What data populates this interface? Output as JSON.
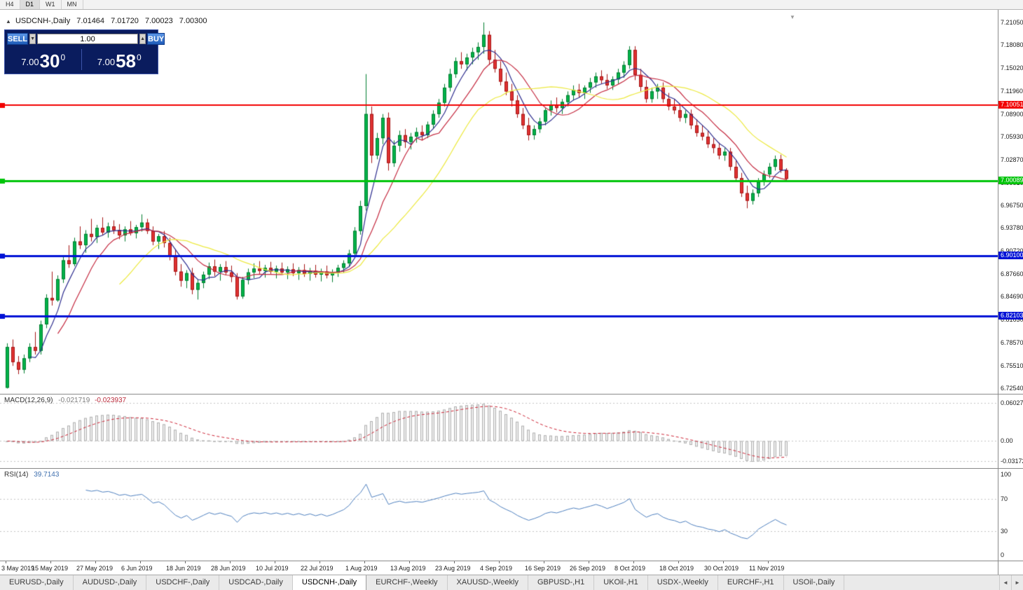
{
  "toolbar": {
    "timeframes": [
      {
        "label": "H4",
        "active": false
      },
      {
        "label": "D1",
        "active": true
      },
      {
        "label": "W1",
        "active": false
      },
      {
        "label": "MN",
        "active": false
      }
    ]
  },
  "chart_header": {
    "collapse_icon": "▲",
    "title": "USDCNH-,Daily",
    "open": "7.01464",
    "high": "7.01720",
    "low": "7.00023",
    "close": "7.00300"
  },
  "one_click": {
    "sell_label": "SELL",
    "buy_label": "BUY",
    "volume": "1.00",
    "spin_down_icon": "▼",
    "spin_up_icon": "▲",
    "sell_price": {
      "prefix": "7.00",
      "pips": "30",
      "point": "0"
    },
    "buy_price": {
      "prefix": "7.00",
      "pips": "58",
      "point": "0"
    }
  },
  "icons": {
    "scroll_end": "▼"
  },
  "price_axis": {
    "labels": [
      "7.21050",
      "7.18080",
      "7.15020",
      "7.11960",
      "7.08900",
      "7.05930",
      "7.02870",
      "6.99810",
      "6.96750",
      "6.93780",
      "6.90720",
      "6.87660",
      "6.84690",
      "6.81630",
      "6.78570",
      "6.75510",
      "6.72540"
    ]
  },
  "levels": [
    {
      "value": 7.10051,
      "label": "7.10051",
      "color": "#f20000",
      "width": 2
    },
    {
      "value": 7.00089,
      "label": "7.00089",
      "color": "#00c40a",
      "width": 3
    },
    {
      "value": 6.901,
      "label": "6.90100",
      "color": "#0012d6",
      "width": 3
    },
    {
      "value": 6.82103,
      "label": "6.82103",
      "color": "#0012d6",
      "width": 3
    }
  ],
  "chart_data": {
    "type": "candlestick",
    "symbol": "USDCNH-",
    "period": "Daily",
    "title": "USDCNH-,Daily",
    "ylim": [
      6.7254,
      7.2105
    ],
    "up_color": "#00b34a",
    "up_border": "#007d2f",
    "down_color": "#e03232",
    "down_border": "#a51515",
    "x_label_indices": [
      0,
      8,
      16,
      24,
      32,
      40,
      48,
      56,
      64,
      72,
      80,
      88,
      96,
      104,
      112,
      120,
      128,
      136
    ],
    "x_labels": [
      "3 May 2019",
      "15 May 2019",
      "27 May 2019",
      "6 Jun 2019",
      "18 Jun 2019",
      "28 Jun 2019",
      "10 Jul 2019",
      "22 Jul 2019",
      "1 Aug 2019",
      "13 Aug 2019",
      "23 Aug 2019",
      "4 Sep 2019",
      "16 Sep 2019",
      "26 Sep 2019",
      "8 Oct 2019",
      "18 Oct 2019",
      "30 Oct 2019",
      "11 Nov 2019"
    ],
    "ohlc": [
      [
        6.726,
        6.785,
        6.725,
        6.78
      ],
      [
        6.78,
        6.79,
        6.755,
        6.76
      ],
      [
        6.76,
        6.768,
        6.744,
        6.75
      ],
      [
        6.75,
        6.77,
        6.745,
        6.765
      ],
      [
        6.765,
        6.785,
        6.76,
        6.78
      ],
      [
        6.78,
        6.8,
        6.77,
        6.775
      ],
      [
        6.775,
        6.815,
        6.77,
        6.81
      ],
      [
        6.81,
        6.85,
        6.805,
        6.845
      ],
      [
        6.845,
        6.88,
        6.835,
        6.842
      ],
      [
        6.842,
        6.875,
        6.84,
        6.87
      ],
      [
        6.87,
        6.9,
        6.865,
        6.895
      ],
      [
        6.895,
        6.915,
        6.885,
        6.89
      ],
      [
        6.89,
        6.925,
        6.887,
        6.92
      ],
      [
        6.92,
        6.94,
        6.91,
        6.915
      ],
      [
        6.915,
        6.935,
        6.905,
        6.93
      ],
      [
        6.93,
        6.95,
        6.92,
        6.926
      ],
      [
        6.926,
        6.942,
        6.918,
        6.938
      ],
      [
        6.938,
        6.952,
        6.928,
        6.932
      ],
      [
        6.932,
        6.945,
        6.925,
        6.94
      ],
      [
        6.94,
        6.948,
        6.93,
        6.935
      ],
      [
        6.935,
        6.943,
        6.923,
        6.928
      ],
      [
        6.928,
        6.94,
        6.92,
        6.936
      ],
      [
        6.936,
        6.947,
        6.928,
        6.931
      ],
      [
        6.931,
        6.942,
        6.924,
        6.939
      ],
      [
        6.939,
        6.956,
        6.933,
        6.945
      ],
      [
        6.945,
        6.95,
        6.93,
        6.934
      ],
      [
        6.934,
        6.94,
        6.915,
        6.92
      ],
      [
        6.92,
        6.93,
        6.91,
        6.927
      ],
      [
        6.927,
        6.934,
        6.912,
        6.918
      ],
      [
        6.918,
        6.925,
        6.895,
        6.9
      ],
      [
        6.9,
        6.91,
        6.875,
        6.88
      ],
      [
        6.88,
        6.89,
        6.86,
        6.868
      ],
      [
        6.868,
        6.882,
        6.858,
        6.878
      ],
      [
        6.878,
        6.885,
        6.85,
        6.856
      ],
      [
        6.856,
        6.87,
        6.843,
        6.865
      ],
      [
        6.865,
        6.88,
        6.858,
        6.876
      ],
      [
        6.876,
        6.892,
        6.87,
        6.887
      ],
      [
        6.887,
        6.896,
        6.874,
        6.88
      ],
      [
        6.88,
        6.89,
        6.868,
        6.886
      ],
      [
        6.886,
        6.894,
        6.875,
        6.879
      ],
      [
        6.879,
        6.888,
        6.866,
        6.873
      ],
      [
        6.873,
        6.878,
        6.843,
        6.847
      ],
      [
        6.847,
        6.873,
        6.844,
        6.869
      ],
      [
        6.869,
        6.884,
        6.863,
        6.879
      ],
      [
        6.879,
        6.891,
        6.871,
        6.884
      ],
      [
        6.884,
        6.894,
        6.877,
        6.881
      ],
      [
        6.881,
        6.889,
        6.872,
        6.885
      ],
      [
        6.885,
        6.893,
        6.877,
        6.88
      ],
      [
        6.88,
        6.888,
        6.871,
        6.884
      ],
      [
        6.884,
        6.892,
        6.876,
        6.879
      ],
      [
        6.879,
        6.887,
        6.87,
        6.883
      ],
      [
        6.883,
        6.891,
        6.874,
        6.878
      ],
      [
        6.878,
        6.886,
        6.869,
        6.882
      ],
      [
        6.882,
        6.89,
        6.873,
        6.877
      ],
      [
        6.877,
        6.885,
        6.868,
        6.881
      ],
      [
        6.881,
        6.889,
        6.872,
        6.876
      ],
      [
        6.876,
        6.884,
        6.867,
        6.88
      ],
      [
        6.88,
        6.888,
        6.871,
        6.875
      ],
      [
        6.875,
        6.883,
        6.866,
        6.879
      ],
      [
        6.879,
        6.889,
        6.873,
        6.885
      ],
      [
        6.885,
        6.895,
        6.879,
        6.891
      ],
      [
        6.891,
        6.909,
        6.886,
        6.904
      ],
      [
        6.904,
        6.939,
        6.899,
        6.934
      ],
      [
        6.934,
        6.974,
        6.929,
        6.967
      ],
      [
        6.967,
        7.142,
        6.961,
        7.089
      ],
      [
        7.089,
        7.099,
        7.024,
        7.034
      ],
      [
        7.034,
        7.064,
        7.029,
        7.057
      ],
      [
        7.057,
        7.089,
        7.049,
        7.084
      ],
      [
        7.084,
        7.091,
        7.014,
        7.024
      ],
      [
        7.024,
        7.054,
        7.019,
        7.047
      ],
      [
        7.047,
        7.067,
        7.039,
        7.061
      ],
      [
        7.061,
        7.069,
        7.044,
        7.052
      ],
      [
        7.052,
        7.064,
        7.042,
        7.059
      ],
      [
        7.059,
        7.071,
        7.051,
        7.065
      ],
      [
        7.065,
        7.074,
        7.054,
        7.061
      ],
      [
        7.061,
        7.079,
        7.057,
        7.075
      ],
      [
        7.075,
        7.094,
        7.069,
        7.089
      ],
      [
        7.089,
        7.109,
        7.084,
        7.104
      ],
      [
        7.104,
        7.129,
        7.099,
        7.124
      ],
      [
        7.124,
        7.149,
        7.119,
        7.142
      ],
      [
        7.142,
        7.164,
        7.137,
        7.159
      ],
      [
        7.159,
        7.171,
        7.149,
        7.155
      ],
      [
        7.155,
        7.169,
        7.147,
        7.164
      ],
      [
        7.164,
        7.177,
        7.155,
        7.171
      ],
      [
        7.171,
        7.184,
        7.161,
        7.178
      ],
      [
        7.178,
        7.2105,
        7.169,
        7.194
      ],
      [
        7.194,
        7.199,
        7.154,
        7.161
      ],
      [
        7.161,
        7.174,
        7.144,
        7.149
      ],
      [
        7.149,
        7.159,
        7.127,
        7.132
      ],
      [
        7.132,
        7.144,
        7.114,
        7.119
      ],
      [
        7.119,
        7.129,
        7.099,
        7.107
      ],
      [
        7.107,
        7.114,
        7.084,
        7.089
      ],
      [
        7.089,
        7.097,
        7.069,
        7.074
      ],
      [
        7.074,
        7.084,
        7.054,
        7.061
      ],
      [
        7.061,
        7.074,
        7.055,
        7.069
      ],
      [
        7.069,
        7.084,
        7.064,
        7.079
      ],
      [
        7.079,
        7.097,
        7.074,
        7.094
      ],
      [
        7.094,
        7.107,
        7.087,
        7.101
      ],
      [
        7.101,
        7.111,
        7.091,
        7.097
      ],
      [
        7.097,
        7.109,
        7.089,
        7.105
      ],
      [
        7.105,
        7.119,
        7.099,
        7.114
      ],
      [
        7.114,
        7.127,
        7.107,
        7.121
      ],
      [
        7.121,
        7.129,
        7.111,
        7.117
      ],
      [
        7.117,
        7.127,
        7.109,
        7.124
      ],
      [
        7.124,
        7.137,
        7.117,
        7.131
      ],
      [
        7.131,
        7.144,
        7.124,
        7.139
      ],
      [
        7.139,
        7.147,
        7.129,
        7.134
      ],
      [
        7.134,
        7.142,
        7.122,
        7.127
      ],
      [
        7.127,
        7.139,
        7.121,
        7.135
      ],
      [
        7.135,
        7.149,
        7.129,
        7.144
      ],
      [
        7.144,
        7.159,
        7.137,
        7.154
      ],
      [
        7.154,
        7.179,
        7.149,
        7.174
      ],
      [
        7.174,
        7.179,
        7.134,
        7.141
      ],
      [
        7.141,
        7.149,
        7.119,
        7.125
      ],
      [
        7.125,
        7.134,
        7.104,
        7.109
      ],
      [
        7.109,
        7.124,
        7.104,
        7.119
      ],
      [
        7.119,
        7.129,
        7.109,
        7.124
      ],
      [
        7.124,
        7.131,
        7.104,
        7.109
      ],
      [
        7.109,
        7.117,
        7.094,
        7.099
      ],
      [
        7.099,
        7.109,
        7.089,
        7.094
      ],
      [
        7.094,
        7.101,
        7.079,
        7.084
      ],
      [
        7.084,
        7.094,
        7.077,
        7.089
      ],
      [
        7.089,
        7.095,
        7.069,
        7.074
      ],
      [
        7.074,
        7.082,
        7.059,
        7.064
      ],
      [
        7.064,
        7.074,
        7.054,
        7.059
      ],
      [
        7.059,
        7.067,
        7.044,
        7.049
      ],
      [
        7.049,
        7.057,
        7.037,
        7.044
      ],
      [
        7.044,
        7.051,
        7.029,
        7.034
      ],
      [
        7.034,
        7.044,
        7.027,
        7.039
      ],
      [
        7.039,
        7.044,
        7.014,
        7.019
      ],
      [
        7.019,
        7.027,
        6.999,
        7.004
      ],
      [
        7.004,
        7.011,
        6.979,
        6.984
      ],
      [
        6.984,
        6.994,
        6.964,
        6.974
      ],
      [
        6.974,
        6.989,
        6.969,
        6.984
      ],
      [
        6.984,
        7.004,
        6.979,
        6.999
      ],
      [
        6.999,
        7.014,
        6.994,
        7.009
      ],
      [
        7.009,
        7.024,
        7.004,
        7.019
      ],
      [
        7.019,
        7.034,
        7.014,
        7.029
      ],
      [
        7.029,
        7.035,
        7.011,
        7.0146
      ],
      [
        7.01464,
        7.0172,
        7.00023,
        7.003
      ]
    ],
    "moving_averages": [
      {
        "period": 5,
        "color": "#2e2e8f"
      },
      {
        "period": 10,
        "color": "#c4293f"
      },
      {
        "period": 21,
        "color": "#ece93f"
      }
    ],
    "indicators": [
      {
        "name": "MACD(12,26,9)",
        "value1": "-0.021719",
        "value2": "-0.023937",
        "fast": 12,
        "slow": 26,
        "signal": 9,
        "scale_labels": [
          "0.060273",
          "0.00",
          "-0.03172"
        ],
        "ylim": [
          -0.03172,
          0.060273
        ],
        "histogram_color": "#efefef",
        "histogram_border": "#b0b0b0",
        "signal_color": "#cc2233"
      },
      {
        "name": "RSI(14)",
        "value": "39.7143",
        "rsi_period": 14,
        "scale_labels": [
          "100",
          "70",
          "30",
          "0"
        ],
        "guide_levels": [
          70,
          30
        ],
        "ylim": [
          0,
          100
        ],
        "line_color": "#4d7fbe"
      }
    ]
  },
  "tabs": {
    "scroll_left_icon": "◄",
    "scroll_right_icon": "►",
    "active_index": 4,
    "items": [
      "EURUSD-,Daily",
      "AUDUSD-,Daily",
      "USDCHF-,Daily",
      "USDCAD-,Daily",
      "USDCNH-,Daily",
      "EURCHF-,Weekly",
      "XAUUSD-,Weekly",
      "GBPUSD-,H1",
      "UKOil-,H1",
      "USDX-,Weekly",
      "EURCHF-,H1",
      "USOil-,Daily"
    ]
  }
}
